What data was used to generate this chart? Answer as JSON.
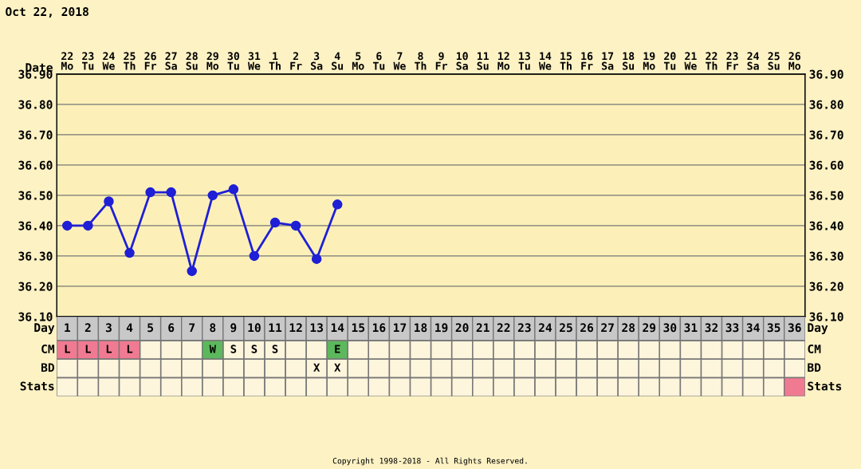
{
  "chart_data": [
    {
      "type": "line",
      "title": "Oct 22, 2018",
      "xlabel": "Date",
      "categories": [
        "22\nMo",
        "23\nTu",
        "24\nWe",
        "25\nTh",
        "26\nFr",
        "27\nSa",
        "28\nSu",
        "29\nMo",
        "30\nTu",
        "31\nWe",
        "1\nTh",
        "2\nFr",
        "3\nSa",
        "4\nSu",
        "5\nMo",
        "6\nTu",
        "7\nWe",
        "8\nTh",
        "9\nFr",
        "10\nSa",
        "11\nSu",
        "12\nMo",
        "13\nTu",
        "14\nWe",
        "15\nTh",
        "16\nFr",
        "17\nSa",
        "18\nSu",
        "19\nMo",
        "20\nTu",
        "21\nWe",
        "22\nTh",
        "23\nFr",
        "24\nSa",
        "25\nSu",
        "26\nMo"
      ],
      "series": [
        {
          "color": "#1f1fd6",
          "values": [
            36.4,
            36.4,
            36.48,
            36.31,
            36.51,
            36.51,
            36.25,
            36.5,
            36.52,
            36.3,
            36.41,
            36.4,
            36.29,
            36.47,
            null,
            null,
            null,
            null,
            null,
            null,
            null,
            null,
            null,
            null,
            null,
            null,
            null,
            null,
            null,
            null,
            null,
            null,
            null,
            null,
            null,
            null
          ]
        }
      ],
      "marker": "circle",
      "line_style": "solid",
      "grid": true,
      "ylim": [
        36.1,
        36.9
      ],
      "yticks": [
        {
          "value": 36.1,
          "label": "36.10"
        },
        {
          "value": 36.2,
          "label": "36.20"
        },
        {
          "value": 36.3,
          "label": "36.30"
        },
        {
          "value": 36.4,
          "label": "36.40"
        },
        {
          "value": 36.5,
          "label": "36.50"
        },
        {
          "value": 36.6,
          "label": "36.60"
        },
        {
          "value": 36.7,
          "label": "36.70"
        },
        {
          "value": 36.8,
          "label": "36.80"
        },
        {
          "value": 36.9,
          "label": "36.90"
        }
      ],
      "y2lim": [
        36.1,
        36.9
      ],
      "y2ticks": [
        {
          "value": 36.1,
          "label": "36.10"
        },
        {
          "value": 36.2,
          "label": "36.20"
        },
        {
          "value": 36.3,
          "label": "36.30"
        },
        {
          "value": 36.4,
          "label": "36.40"
        },
        {
          "value": 36.5,
          "label": "36.50"
        },
        {
          "value": 36.6,
          "label": "36.60"
        },
        {
          "value": 36.7,
          "label": "36.70"
        },
        {
          "value": 36.8,
          "label": "36.80"
        },
        {
          "value": 36.9,
          "label": "36.90"
        }
      ]
    },
    {
      "type": "heatmap",
      "xlabel": "Day",
      "cells": [
        [
          null,
          null,
          null,
          null,
          null,
          null,
          null,
          null,
          null,
          null,
          null,
          null,
          null,
          null,
          null,
          null,
          null,
          null,
          null,
          null,
          null,
          null,
          null,
          null,
          null,
          null,
          null,
          null,
          null,
          null,
          null,
          null,
          null,
          null,
          null,
          null
        ],
        [
          null,
          null,
          null,
          null,
          null,
          null,
          null,
          null,
          null,
          null,
          null,
          null,
          null,
          null,
          null,
          null,
          null,
          null,
          null,
          null,
          null,
          null,
          null,
          null,
          null,
          null,
          null,
          null,
          null,
          null,
          null,
          null,
          null,
          null,
          null,
          null
        ],
        [
          null,
          null,
          null,
          null,
          null,
          null,
          null,
          null,
          null,
          null,
          null,
          null,
          null,
          null,
          null,
          null,
          null,
          null,
          null,
          null,
          null,
          null,
          null,
          null,
          null,
          null,
          null,
          null,
          null,
          null,
          null,
          null,
          null,
          null,
          null,
          null
        ]
      ],
      "categories": [
        "1",
        "2",
        "3",
        "4",
        "5",
        "6",
        "7",
        "8",
        "9",
        "10",
        "11",
        "12",
        "13",
        "14",
        "15",
        "16",
        "17",
        "18",
        "19",
        "20",
        "21",
        "22",
        "23",
        "24",
        "25",
        "26",
        "27",
        "28",
        "29",
        "30",
        "31",
        "32",
        "33",
        "34",
        "35",
        "36"
      ],
      "y_categories": [
        "CM",
        "BD",
        "Stats"
      ],
      "y2_categories": [
        "CM",
        "BD",
        "Stats"
      ],
      "cell_labels": [
        [
          "L",
          "L",
          "L",
          "L",
          null,
          null,
          null,
          "W",
          "S",
          "S",
          "S",
          null,
          null,
          "E",
          null,
          null,
          null,
          null,
          null,
          null,
          null,
          null,
          null,
          null,
          null,
          null,
          null,
          null,
          null,
          null,
          null,
          null,
          null,
          null,
          null,
          null
        ],
        [
          null,
          null,
          null,
          null,
          null,
          null,
          null,
          null,
          null,
          null,
          null,
          null,
          "X",
          "X",
          null,
          null,
          null,
          null,
          null,
          null,
          null,
          null,
          null,
          null,
          null,
          null,
          null,
          null,
          null,
          null,
          null,
          null,
          null,
          null,
          null,
          null
        ],
        [
          null,
          null,
          null,
          null,
          null,
          null,
          null,
          null,
          null,
          null,
          null,
          null,
          null,
          null,
          null,
          null,
          null,
          null,
          null,
          null,
          null,
          null,
          null,
          null,
          null,
          null,
          null,
          null,
          null,
          null,
          null,
          null,
          null,
          null,
          null,
          null
        ]
      ],
      "colors": [
        [
          "#f07a92",
          "#f07a92",
          "#f07a92",
          "#f07a92",
          null,
          null,
          null,
          "#5cb85c",
          null,
          null,
          null,
          null,
          null,
          "#5cb85c",
          null,
          null,
          null,
          null,
          null,
          null,
          null,
          null,
          null,
          null,
          null,
          null,
          null,
          null,
          null,
          null,
          null,
          null,
          null,
          null,
          null,
          null
        ],
        [
          null,
          null,
          null,
          null,
          null,
          null,
          null,
          null,
          null,
          null,
          null,
          null,
          null,
          null,
          null,
          null,
          null,
          null,
          null,
          null,
          null,
          null,
          null,
          null,
          null,
          null,
          null,
          null,
          null,
          null,
          null,
          null,
          null,
          null,
          null,
          null
        ],
        [
          null,
          null,
          null,
          null,
          null,
          null,
          null,
          null,
          null,
          null,
          null,
          null,
          null,
          null,
          null,
          null,
          null,
          null,
          null,
          null,
          null,
          null,
          null,
          null,
          null,
          null,
          null,
          null,
          null,
          null,
          null,
          null,
          null,
          null,
          null,
          "#f07a92"
        ]
      ],
      "annotations": [
        "Copyright 1998-2018 - All Rights Reserved."
      ]
    }
  ]
}
